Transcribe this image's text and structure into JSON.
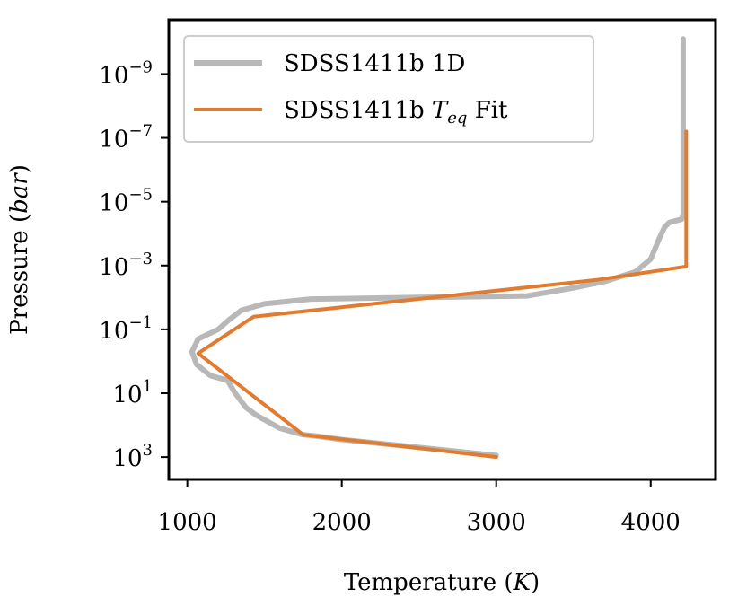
{
  "chart_data": {
    "type": "line",
    "title": "",
    "xlabel": "Temperature",
    "xlabel_unit": "K",
    "ylabel": "Pressure",
    "ylabel_unit": "bar",
    "y_scale": "log",
    "y_inverted": true,
    "xlim": [
      880,
      4420
    ],
    "ylim_log10": [
      -10.7,
      3.7
    ],
    "x_ticks": [
      1000,
      2000,
      3000,
      4000
    ],
    "x_tick_labels": [
      "1000",
      "2000",
      "3000",
      "4000"
    ],
    "y_ticks_log10": [
      -9,
      -7,
      -5,
      -3,
      -1,
      1,
      3
    ],
    "y_tick_base": "10",
    "y_tick_exponents": [
      "−9",
      "−7",
      "−5",
      "−3",
      "−1",
      "1",
      "3"
    ],
    "legend_position": "top-left",
    "series": [
      {
        "name": "SDSS1411b 1D",
        "legend_label": "SDSS1411b 1D",
        "color": "#b8b8b8",
        "points": [
          [
            3000,
            2.95
          ],
          [
            2500,
            2.7
          ],
          [
            2000,
            2.45
          ],
          [
            1850,
            2.35
          ],
          [
            1750,
            2.3
          ],
          [
            1600,
            2.1
          ],
          [
            1450,
            1.7
          ],
          [
            1380,
            1.45
          ],
          [
            1310,
            1.0
          ],
          [
            1260,
            0.6
          ],
          [
            1150,
            0.45
          ],
          [
            1060,
            0.1
          ],
          [
            1030,
            -0.3
          ],
          [
            1070,
            -0.7
          ],
          [
            1200,
            -1.0
          ],
          [
            1270,
            -1.3
          ],
          [
            1350,
            -1.6
          ],
          [
            1500,
            -1.8
          ],
          [
            1800,
            -1.95
          ],
          [
            2500,
            -2.0
          ],
          [
            3200,
            -2.05
          ],
          [
            3500,
            -2.3
          ],
          [
            3700,
            -2.5
          ],
          [
            3900,
            -2.8
          ],
          [
            4000,
            -3.2
          ],
          [
            4060,
            -3.9
          ],
          [
            4090,
            -4.2
          ],
          [
            4120,
            -4.35
          ],
          [
            4200,
            -4.45
          ],
          [
            4210,
            -4.6
          ],
          [
            4210,
            -10.1
          ]
        ]
      },
      {
        "name": "SDSS1411b Teq Fit",
        "legend_label": "SDSS1411b ",
        "legend_math": "T",
        "legend_math_sub": "eq",
        "legend_suffix": " Fit",
        "color": "#e07b30",
        "points": [
          [
            3000,
            3.0
          ],
          [
            1750,
            2.3
          ],
          [
            1070,
            -0.25
          ],
          [
            1430,
            -1.4
          ],
          [
            3650,
            -2.55
          ],
          [
            4230,
            -2.97
          ],
          [
            4230,
            -7.2
          ]
        ]
      }
    ]
  }
}
